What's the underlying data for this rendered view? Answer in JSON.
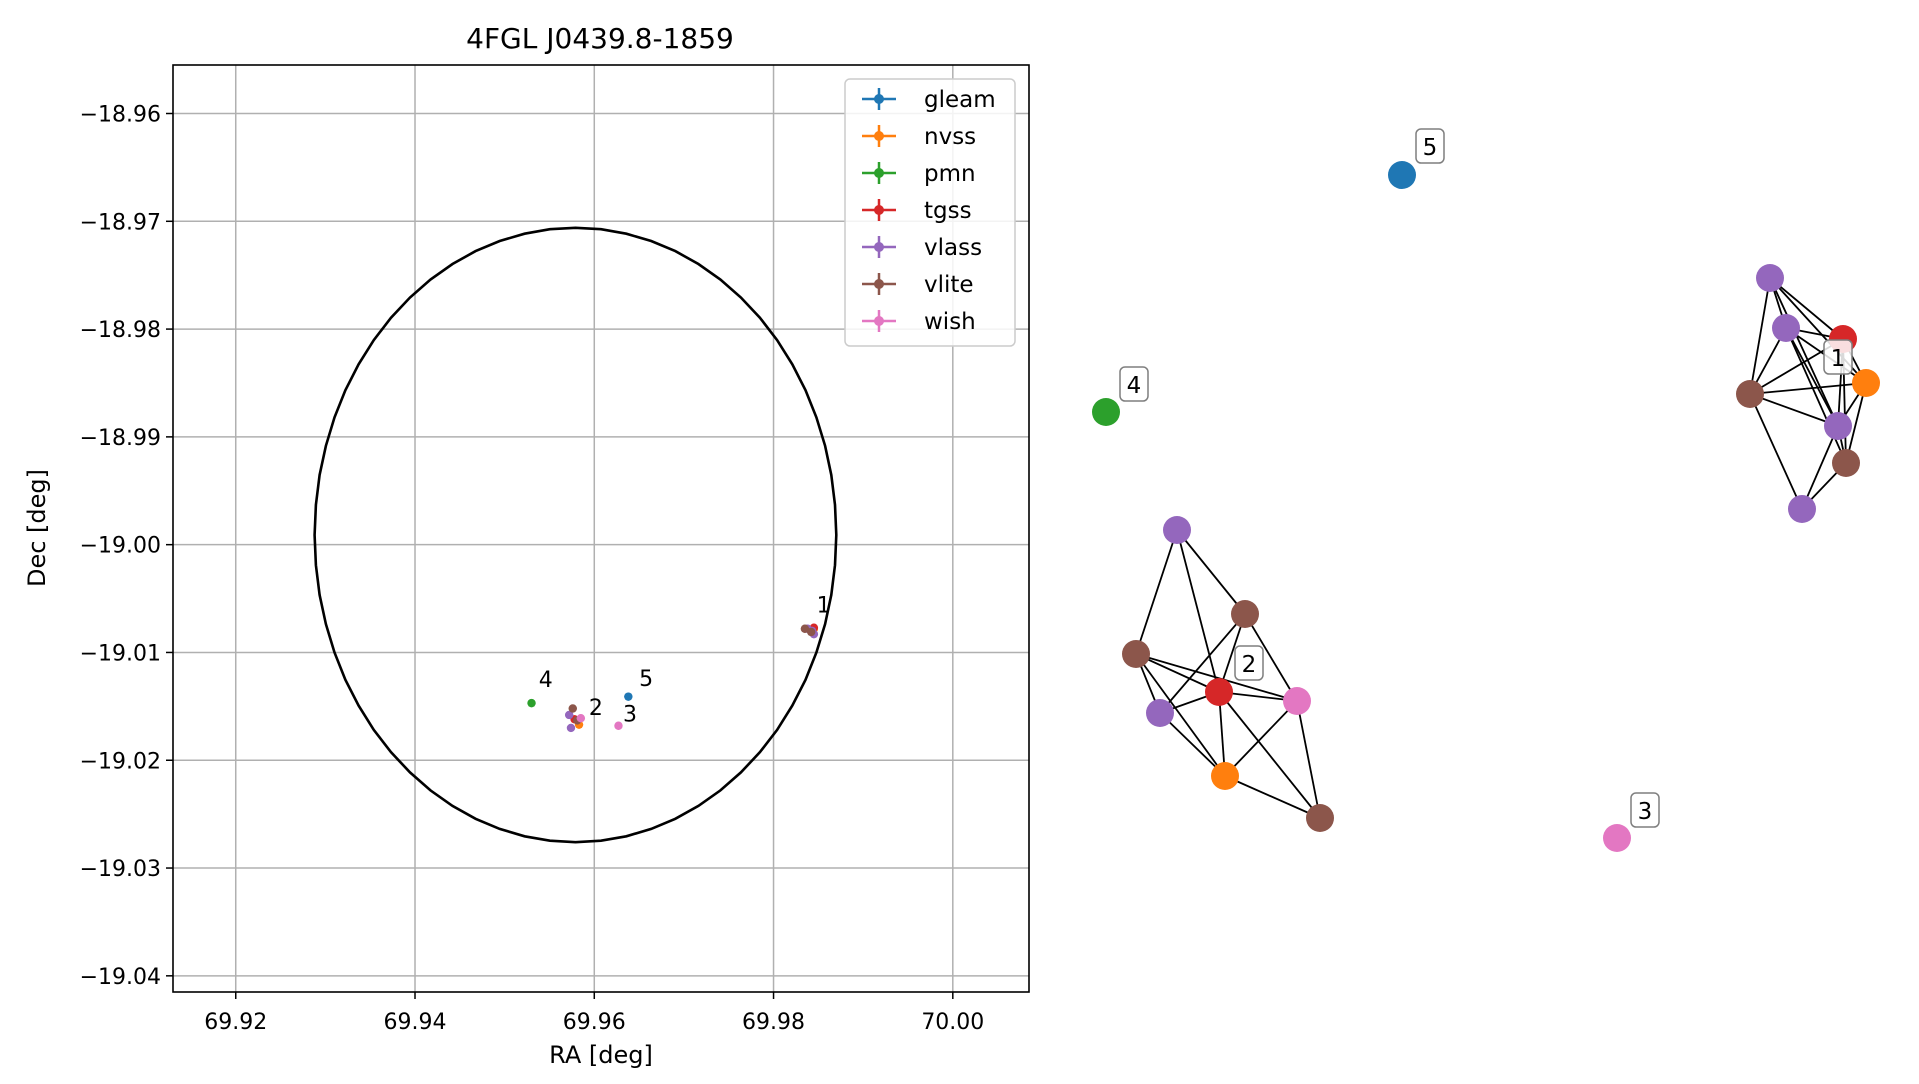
{
  "chart_data": [
    {
      "type": "scatter",
      "title": "4FGL J0439.8-1859",
      "xlabel": "RA [deg]",
      "ylabel": "Dec [deg]",
      "xlim": [
        69.913,
        70.0085
      ],
      "ylim": [
        -19.0415,
        -18.9555
      ],
      "x_ticks": [
        69.92,
        69.94,
        69.96,
        69.98,
        70.0
      ],
      "x_tick_labels": [
        "69.92",
        "69.94",
        "69.96",
        "69.98",
        "70.00"
      ],
      "y_ticks": [
        -18.96,
        -18.97,
        -18.98,
        -18.99,
        -19.0,
        -19.01,
        -19.02,
        -19.03,
        -19.04
      ],
      "y_tick_labels": [
        "−18.96",
        "−18.97",
        "−18.98",
        "−18.99",
        "−19.00",
        "−19.01",
        "−19.02",
        "−19.03",
        "−19.04"
      ],
      "grid": true,
      "legend_position": "top-right",
      "circle": {
        "center": [
          69.9579,
          -18.9991
        ],
        "radius_ra": 0.0291,
        "radius_dec": 0.0285,
        "color": "#000000"
      },
      "series": [
        {
          "name": "gleam",
          "color": "#1f77b4",
          "points": [
            [
              69.9638,
              -19.0141
            ]
          ]
        },
        {
          "name": "nvss",
          "color": "#ff7f0e",
          "points": [
            [
              69.9845,
              -19.0078
            ],
            [
              69.9583,
              -19.0167
            ]
          ]
        },
        {
          "name": "pmn",
          "color": "#2ca02c",
          "points": [
            [
              69.953,
              -19.0147
            ]
          ]
        },
        {
          "name": "tgss",
          "color": "#d62728",
          "points": [
            [
              69.9845,
              -19.0077
            ],
            [
              69.9578,
              -19.0162
            ]
          ]
        },
        {
          "name": "vlass",
          "color": "#9467bd",
          "points": [
            [
              69.9838,
              -19.0078
            ],
            [
              69.9843,
              -19.008
            ],
            [
              69.9845,
              -19.0083
            ],
            [
              69.9572,
              -19.0158
            ],
            [
              69.9574,
              -19.017
            ]
          ]
        },
        {
          "name": "vlite",
          "color": "#8c564b",
          "points": [
            [
              69.9835,
              -19.0078
            ],
            [
              69.9842,
              -19.0081
            ],
            [
              69.9576,
              -19.0152
            ],
            [
              69.9581,
              -19.0163
            ]
          ]
        },
        {
          "name": "wish",
          "color": "#e377c2",
          "points": [
            [
              69.9627,
              -19.0168
            ],
            [
              69.9585,
              -19.0161
            ]
          ]
        }
      ],
      "labels": [
        {
          "text": "1",
          "x": 69.9848,
          "y": -19.0063
        },
        {
          "text": "2",
          "x": 69.9594,
          "y": -19.0158
        },
        {
          "text": "3",
          "x": 69.9632,
          "y": -19.0164
        },
        {
          "text": "4",
          "x": 69.9538,
          "y": -19.0132
        },
        {
          "text": "5",
          "x": 69.965,
          "y": -19.0131
        }
      ]
    },
    {
      "type": "network",
      "nodes": [
        {
          "id": "n5",
          "color": "#1f77b4",
          "label": "5"
        },
        {
          "id": "n4",
          "color": "#2ca02c",
          "label": "4"
        },
        {
          "id": "n3",
          "color": "#e377c2",
          "label": "3"
        },
        {
          "id": "v1a",
          "color": "#9467bd"
        },
        {
          "id": "v1b",
          "color": "#9467bd"
        },
        {
          "id": "t1",
          "color": "#d62728"
        },
        {
          "id": "o1",
          "color": "#ff7f0e",
          "label": "1"
        },
        {
          "id": "b1a",
          "color": "#8c564b"
        },
        {
          "id": "v1c",
          "color": "#9467bd"
        },
        {
          "id": "b1b",
          "color": "#8c564b"
        },
        {
          "id": "v1d",
          "color": "#9467bd"
        },
        {
          "id": "v2a",
          "color": "#9467bd"
        },
        {
          "id": "b2a",
          "color": "#8c564b"
        },
        {
          "id": "b2b",
          "color": "#8c564b"
        },
        {
          "id": "t2",
          "color": "#d62728",
          "label": "2"
        },
        {
          "id": "w2",
          "color": "#e377c2"
        },
        {
          "id": "v2b",
          "color": "#9467bd"
        },
        {
          "id": "o2",
          "color": "#ff7f0e"
        },
        {
          "id": "b2c",
          "color": "#8c564b"
        }
      ],
      "edges": [
        [
          "v1a",
          "v1b"
        ],
        [
          "v1a",
          "t1"
        ],
        [
          "v1a",
          "o1"
        ],
        [
          "v1a",
          "b1a"
        ],
        [
          "v1a",
          "v1c"
        ],
        [
          "v1b",
          "t1"
        ],
        [
          "v1b",
          "o1"
        ],
        [
          "v1b",
          "b1a"
        ],
        [
          "v1b",
          "v1c"
        ],
        [
          "v1b",
          "b1b"
        ],
        [
          "t1",
          "o1"
        ],
        [
          "t1",
          "b1a"
        ],
        [
          "t1",
          "v1c"
        ],
        [
          "t1",
          "b1b"
        ],
        [
          "o1",
          "b1a"
        ],
        [
          "o1",
          "v1c"
        ],
        [
          "o1",
          "b1b"
        ],
        [
          "b1a",
          "v1c"
        ],
        [
          "b1a",
          "v1d"
        ],
        [
          "v1c",
          "b1b"
        ],
        [
          "b1b",
          "v1d"
        ],
        [
          "v1c",
          "v1d"
        ],
        [
          "v2a",
          "b2a"
        ],
        [
          "v2a",
          "t2"
        ],
        [
          "v2a",
          "b2b"
        ],
        [
          "b2a",
          "t2"
        ],
        [
          "b2a",
          "o2"
        ],
        [
          "b2a",
          "v2b"
        ],
        [
          "b2a",
          "w2"
        ],
        [
          "b2b",
          "t2"
        ],
        [
          "b2b",
          "v2b"
        ],
        [
          "b2b",
          "w2"
        ],
        [
          "t2",
          "v2b"
        ],
        [
          "t2",
          "o2"
        ],
        [
          "t2",
          "w2"
        ],
        [
          "t2",
          "b2c"
        ],
        [
          "v2b",
          "o2"
        ],
        [
          "o2",
          "w2"
        ],
        [
          "o2",
          "b2c"
        ],
        [
          "w2",
          "b2c"
        ]
      ]
    }
  ]
}
